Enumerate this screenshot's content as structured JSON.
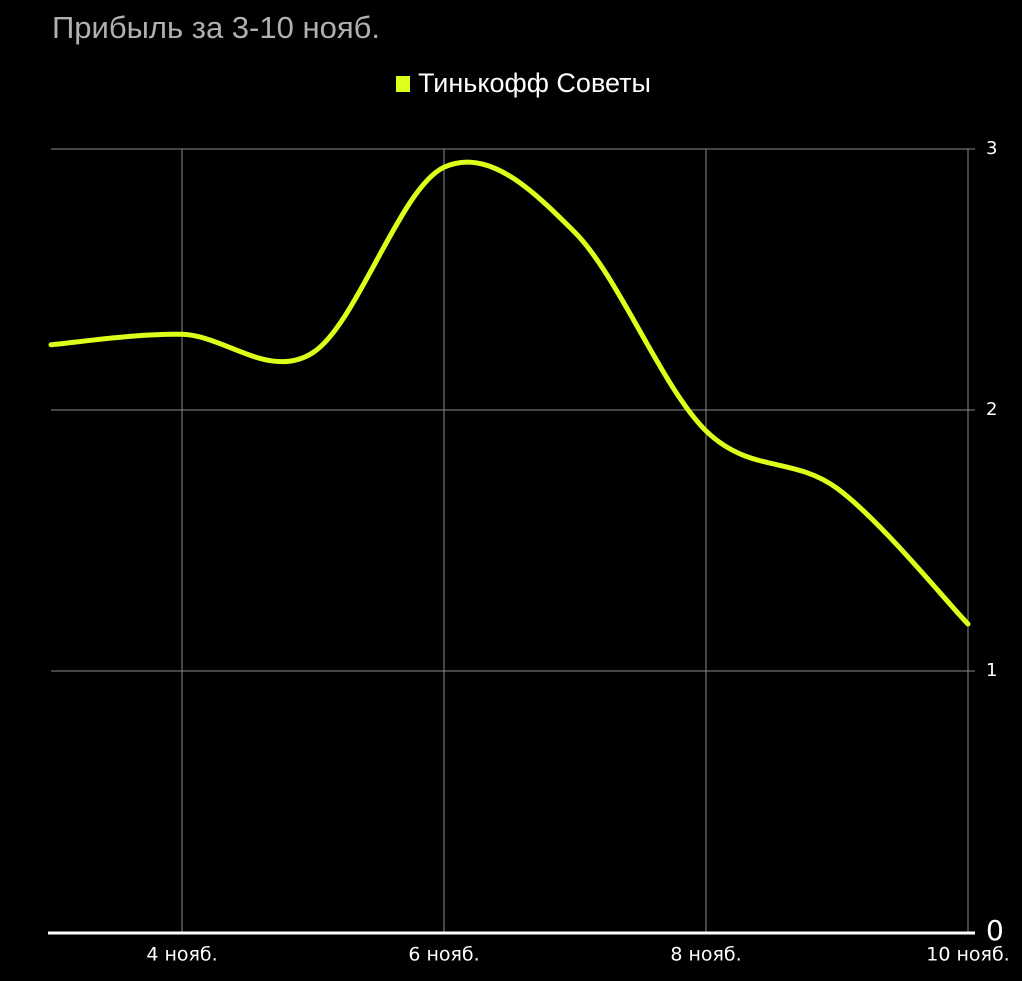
{
  "chart_data": {
    "type": "line",
    "title": "Прибыль за 3-10 нояб.",
    "categories": [
      null,
      "4 нояб.",
      null,
      "6 нояб.",
      null,
      "8 нояб.",
      null,
      "10 нояб."
    ],
    "series": [
      {
        "name": "Тинькофф Советы",
        "color": "#ddff1a",
        "values": [
          2.25,
          2.29,
          2.22,
          2.93,
          2.68,
          1.92,
          1.7,
          1.18
        ]
      }
    ],
    "ylim": [
      0,
      3
    ],
    "yticks": [
      0,
      1,
      2,
      3
    ],
    "grid": true,
    "legend": "top"
  }
}
